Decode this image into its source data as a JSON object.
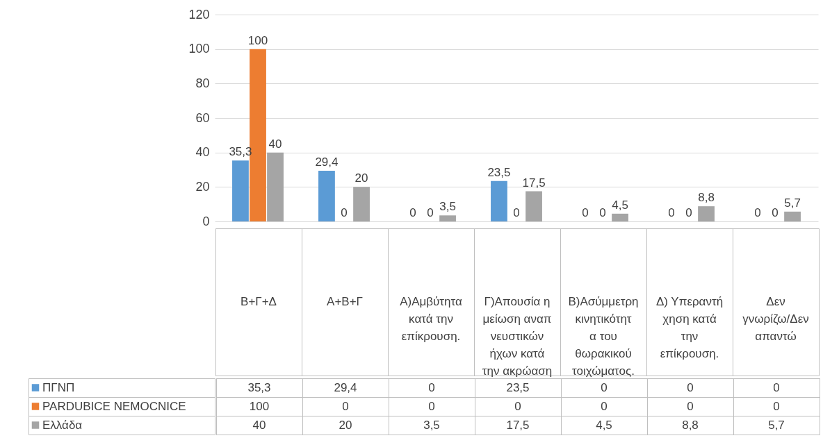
{
  "chart_data": {
    "type": "bar",
    "categories": [
      "Β+Γ+Δ",
      "Α+Β+Γ",
      "Α)Αμβύτητα κατά την επίκρουση.",
      "Γ)Απουσία η μείωση αναπνευστικών ήχων κατά την ακρώαση",
      "Β)Ασύμμετρη κινητικότητα του θωρακικού τοιχώματος.",
      "Δ) Υπεραντήχηση κατά την επίκρουση.",
      "Δεν γνωρίζω/Δεν απαντώ"
    ],
    "series": [
      {
        "name": "ΠΓΝΠ",
        "color": "#5b9bd5",
        "values": [
          35.3,
          29.4,
          0,
          23.5,
          0,
          0,
          0
        ],
        "value_labels": [
          "35,3",
          "29,4",
          "0",
          "23,5",
          "0",
          "0",
          "0"
        ]
      },
      {
        "name": "PARDUBICE NEMOCNICE",
        "color": "#ed7d31",
        "values": [
          100,
          0,
          0,
          0,
          0,
          0,
          0
        ],
        "value_labels": [
          "100",
          "0",
          "0",
          "0",
          "0",
          "0",
          "0"
        ]
      },
      {
        "name": "Ελλάδα",
        "color": "#a5a5a5",
        "values": [
          40,
          20,
          3.5,
          17.5,
          4.5,
          8.8,
          5.7
        ],
        "value_labels": [
          "40",
          "20",
          "3,5",
          "17,5",
          "4,5",
          "8,8",
          "5,7"
        ]
      }
    ],
    "ylim": [
      0,
      120
    ],
    "yticks": [
      0,
      20,
      40,
      60,
      80,
      100,
      120
    ],
    "grid": "y",
    "legend": "bottom"
  }
}
